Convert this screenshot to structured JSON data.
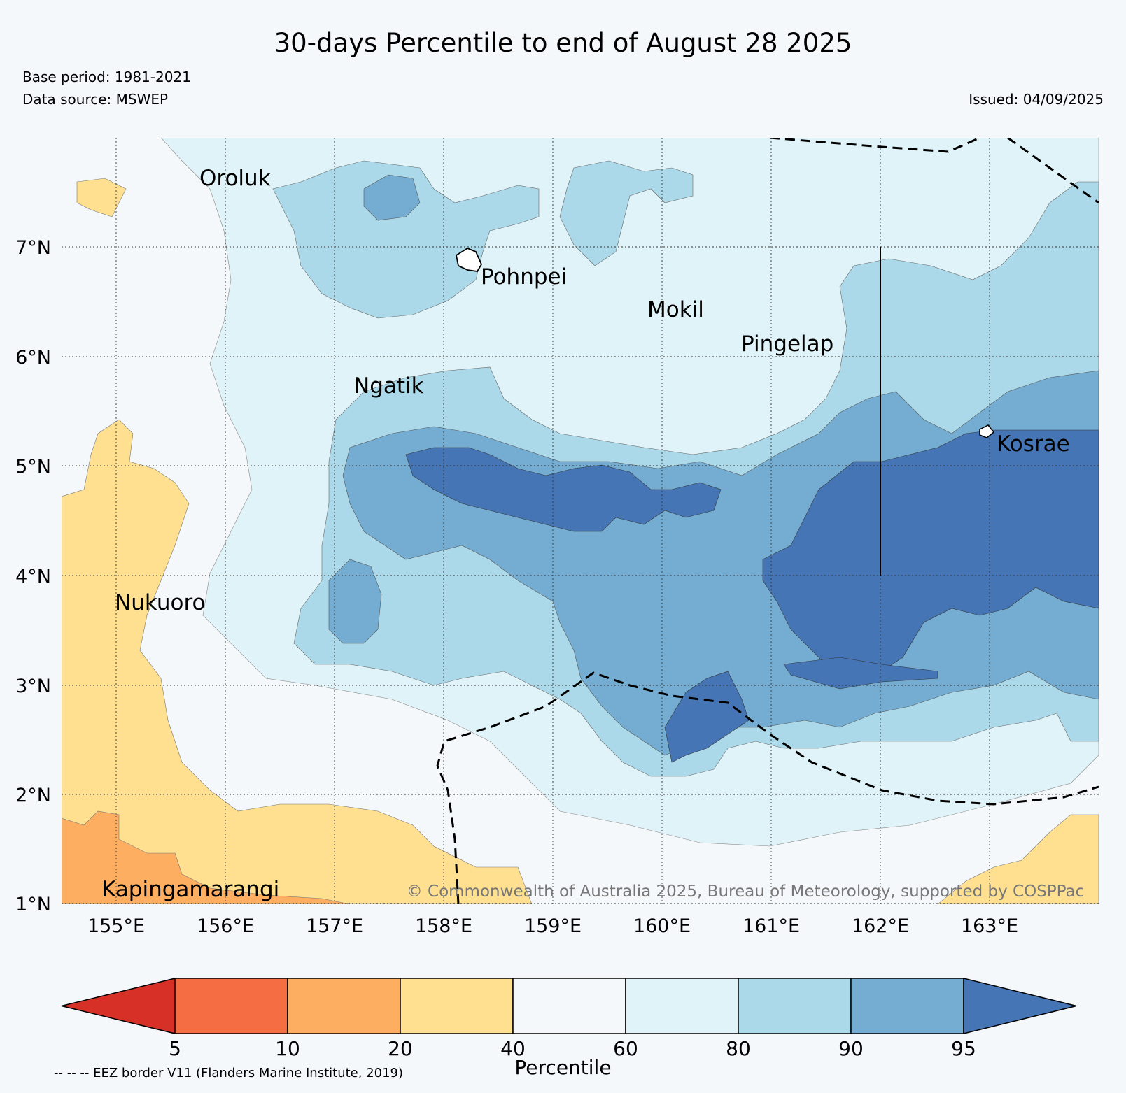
{
  "title": "30-days Percentile to end of August 28 2025",
  "base_period": "Base period: 1981-2021",
  "data_source": "Data source: MSWEP",
  "issued": "Issued: 04/09/2025",
  "copyright": "© Commonwealth of Australia 2025, Bureau of Meteorology, supported by COSPPac",
  "lat_ticks": [
    "7°N",
    "6°N",
    "5°N",
    "4°N",
    "3°N",
    "2°N",
    "1°N"
  ],
  "lon_ticks": [
    "155°E",
    "156°E",
    "157°E",
    "158°E",
    "159°E",
    "160°E",
    "161°E",
    "162°E",
    "163°E"
  ],
  "places": [
    "Oroluk",
    "Pohnpei",
    "Mokil",
    "Pingelap",
    "Ngatik",
    "Kosrae",
    "Nukuoro",
    "Kapingamarangi"
  ],
  "colorbar": {
    "label": "Percentile",
    "ticks": [
      "5",
      "10",
      "20",
      "40",
      "60",
      "80",
      "90",
      "95"
    ],
    "colors": [
      "#d73027",
      "#f46d43",
      "#fdae61",
      "#fee090",
      "#f4f8fb",
      "#e0f3f8",
      "#abd9e9",
      "#74add1",
      "#4575b4"
    ]
  },
  "legend_note": "-- -- -- EEZ border V11 (Flanders Marine Institute, 2019)",
  "map_colors": {
    "white": "#f4f8fb",
    "p40_60": "#f4f8fb",
    "p60_80": "#e0f3f8",
    "p80_90": "#abd9e9",
    "p90_95": "#74add1",
    "p95": "#4575b4",
    "p20_40": "#fee090",
    "p10_20": "#fdae61"
  }
}
